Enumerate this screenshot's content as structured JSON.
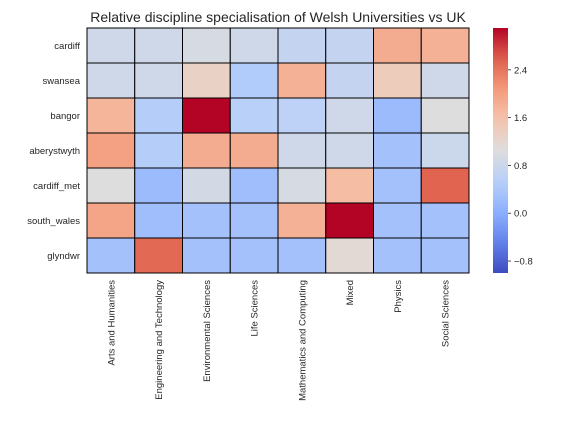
{
  "chart_data": {
    "type": "heatmap",
    "title": "Relative discipline specialisation of Welsh Universities vs UK",
    "xlabel": "",
    "ylabel": "",
    "rows": [
      "cardiff",
      "swansea",
      "bangor",
      "aberystwyth",
      "cardiff_met",
      "south_wales",
      "glyndwr"
    ],
    "columns": [
      "Arts and Humanities",
      "Engineering and Technology",
      "Environmental Sciences",
      "Life Sciences",
      "Mathematics and Computing",
      "Mixed",
      "Physics",
      "Social Sciences"
    ],
    "values": [
      [
        0.85,
        0.85,
        0.95,
        0.85,
        0.7,
        0.7,
        1.85,
        1.8
      ],
      [
        0.85,
        0.85,
        1.3,
        0.45,
        1.8,
        0.7,
        1.4,
        0.85
      ],
      [
        1.75,
        0.5,
        3.1,
        0.55,
        0.6,
        0.85,
        0.2,
        1.05
      ],
      [
        2.0,
        0.5,
        1.85,
        1.85,
        0.85,
        0.85,
        0.3,
        0.8
      ],
      [
        1.05,
        0.2,
        0.9,
        0.25,
        0.95,
        1.65,
        0.3,
        2.55
      ],
      [
        1.95,
        0.25,
        0.3,
        0.3,
        1.8,
        3.15,
        0.3,
        0.3
      ],
      [
        0.3,
        2.5,
        0.3,
        0.3,
        0.3,
        1.15,
        0.3,
        0.3
      ]
    ],
    "vmin": -1.0,
    "vmax": 3.1,
    "colormap": "coolwarm",
    "colorbar_ticks": [
      -0.8,
      0.0,
      0.8,
      1.6,
      2.4
    ],
    "colorbar_tick_labels": [
      "−0.8",
      "0.0",
      "0.8",
      "1.6",
      "2.4"
    ],
    "cell_border_color": "#000000",
    "grid": false
  }
}
